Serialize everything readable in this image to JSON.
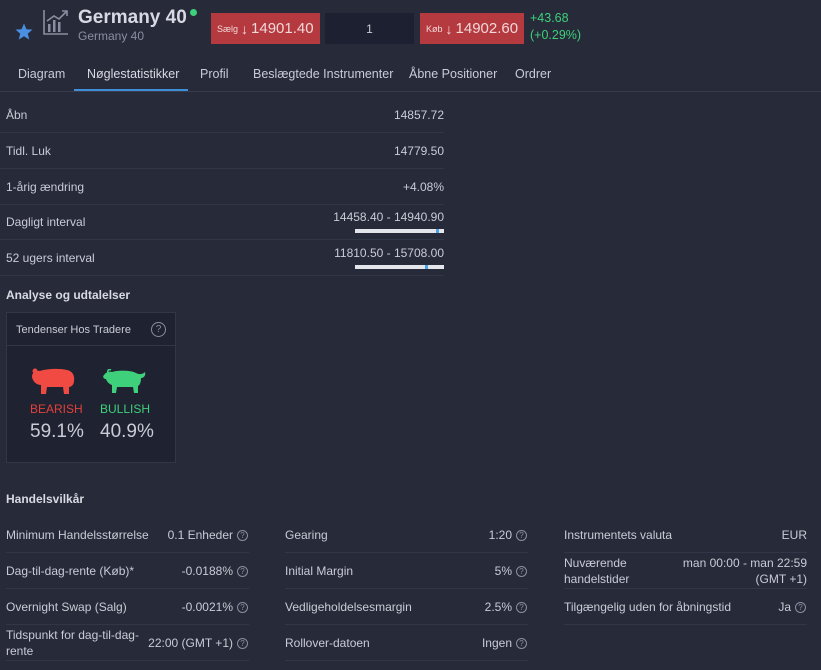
{
  "header": {
    "title": "Germany 40",
    "subtitle": "Germany 40",
    "sell": {
      "label": "Sælg",
      "arrow": "↓",
      "price": "14901.40"
    },
    "quantity": "1",
    "buy": {
      "label": "Køb",
      "arrow": "↓",
      "price": "14902.60"
    },
    "change_abs": "+43.68",
    "change_pct": "(+0.29%)",
    "colors": {
      "sell_bg": "#b43a3f",
      "buy_bg": "#b43a3f",
      "positive": "#3ed07b"
    }
  },
  "tabs": [
    {
      "label": "Diagram",
      "active": false
    },
    {
      "label": "Nøglestatistikker",
      "active": true
    },
    {
      "label": "Profil",
      "active": false
    },
    {
      "label": "Beslægtede Instrumenter",
      "active": false
    },
    {
      "label": "Åbne Positioner",
      "active": false
    },
    {
      "label": "Ordrer",
      "active": false
    }
  ],
  "stats": [
    {
      "label": "Åbn",
      "value": "14857.72"
    },
    {
      "label": "Tidl. Luk",
      "value": "14779.50"
    },
    {
      "label": "1-årig ændring",
      "value": "+4.08%"
    },
    {
      "label": "Dagligt interval",
      "value": "14458.40 - 14940.90",
      "marker_fraction": 0.92
    },
    {
      "label": "52 ugers interval",
      "value": "11810.50 - 15708.00",
      "marker_fraction": 0.8
    }
  ],
  "analysis": {
    "title": "Analyse og udtalelser",
    "card_title": "Tendenser Hos Tradere",
    "bearish_label": "BEARISH",
    "bearish_pct": "59.1%",
    "bullish_label": "BULLISH",
    "bullish_pct": "40.9%",
    "colors": {
      "bearish": "#e0413c",
      "bullish": "#3ed07b"
    }
  },
  "conditions": {
    "title": "Handelsvilkår",
    "col1": [
      {
        "label": "Minimum Handelsstørrelse",
        "value": "0.1 Enheder"
      },
      {
        "label": "Dag-til-dag-rente (Køb)*",
        "value": "-0.0188%"
      },
      {
        "label": "Overnight Swap (Salg)",
        "value": "-0.0021%"
      },
      {
        "label": "Tidspunkt for dag-til-dag-rente",
        "value": "22:00 (GMT +1)"
      }
    ],
    "col2": [
      {
        "label": "Gearing",
        "value": "1:20"
      },
      {
        "label": "Initial Margin",
        "value": "5%"
      },
      {
        "label": "Vedligeholdelsesmargin",
        "value": "2.5%"
      },
      {
        "label": "Rollover-datoen",
        "value": "Ingen"
      }
    ],
    "col3": [
      {
        "label": "Instrumentets valuta",
        "value": "EUR"
      },
      {
        "label": "Nuværende handelstider",
        "value": "man 00:00 - man 22:59 (GMT +1)"
      },
      {
        "label": "Tilgængelig uden for åbningstid",
        "value": "Ja"
      }
    ],
    "help_glyph": "?"
  }
}
